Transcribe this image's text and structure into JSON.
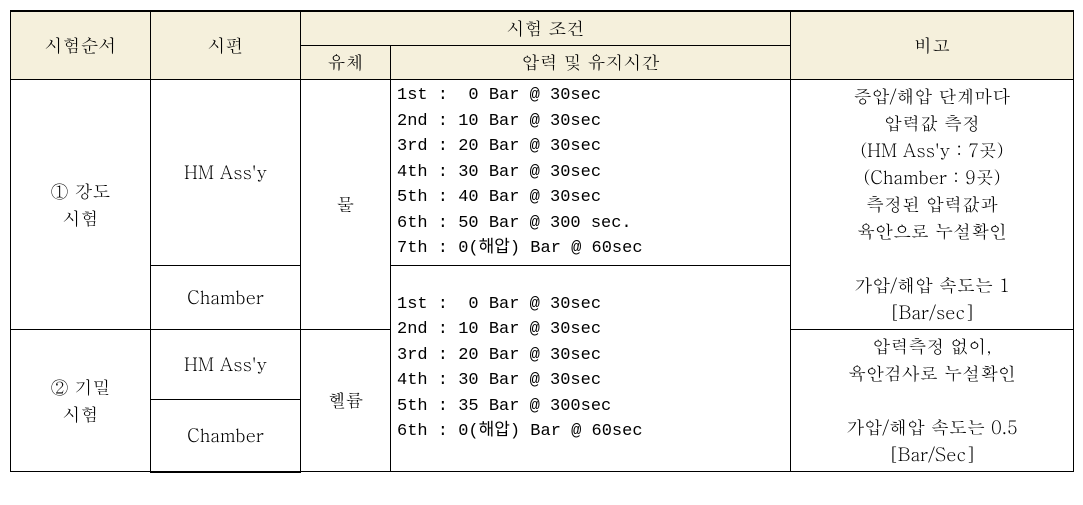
{
  "headers": {
    "seq": "시험순서",
    "specimen": "시편",
    "cond": "시험 조건",
    "fluid": "유체",
    "pressure": "압력 및 유지시간",
    "note": "비고"
  },
  "rows": {
    "r1": {
      "seq": "① 강도\n시험",
      "specimen1": "HM Ass'y",
      "specimen2": "Chamber",
      "fluid": "물",
      "pressure1": "1st :  0 Bar @ 30sec\n2nd : 10 Bar @ 30sec\n3rd : 20 Bar @ 30sec\n4th : 30 Bar @ 30sec\n5th : 40 Bar @ 30sec\n6th : 50 Bar @ 300 sec.\n7th : 0(해압) Bar @ 60sec",
      "note1": "증압/해압 단계마다\n압력값 측정\n(HM Ass'y : 7곳)\n(Chamber : 9곳)\n측정된 압력값과\n육안으로 누설확인\n\n가압/해압 속도는 1\n[Bar/sec]",
      "pressure2": "1st :  0 Bar @ 30sec\n2nd : 10 Bar @ 30sec\n3rd : 20 Bar @ 30sec\n4th : 30 Bar @ 30sec\n5th : 35 Bar @ 300sec\n6th : 0(해압) Bar @ 60sec"
    },
    "r2": {
      "seq": "② 기밀\n시험",
      "specimen1": "HM Ass'y",
      "specimen2": "Chamber",
      "fluid": "헬륨",
      "note2": "압력측정 없이,\n육안검사로 누설확인\n\n가압/해압 속도는 0.5\n[Bar/Sec]"
    }
  },
  "style": {
    "header_bg": "#f5f0dc",
    "border_color": "#000000",
    "font_size": 18,
    "mono_font_size": 17
  }
}
